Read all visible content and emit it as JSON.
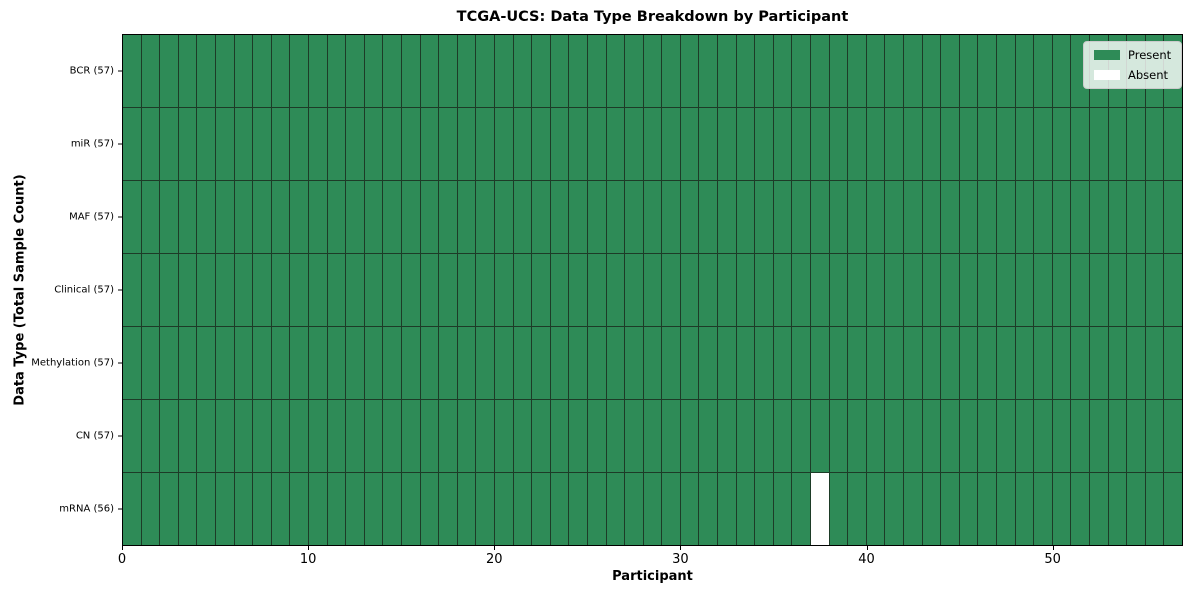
{
  "chart_data": {
    "type": "heatmap",
    "title": "TCGA-UCS: Data Type Breakdown by Participant",
    "xlabel": "Participant",
    "ylabel": "Data Type (Total Sample Count)",
    "n_participants": 57,
    "x_range": [
      0,
      57
    ],
    "x_ticks": [
      0,
      10,
      20,
      30,
      40,
      50
    ],
    "rows": [
      {
        "label": "BCR (57)",
        "data_type": "BCR",
        "total": 57,
        "absent_participants": []
      },
      {
        "label": "miR (57)",
        "data_type": "miR",
        "total": 57,
        "absent_participants": []
      },
      {
        "label": "MAF (57)",
        "data_type": "MAF",
        "total": 57,
        "absent_participants": []
      },
      {
        "label": "Clinical (57)",
        "data_type": "Clinical",
        "total": 57,
        "absent_participants": []
      },
      {
        "label": "Methylation (57)",
        "data_type": "Methylation",
        "total": 57,
        "absent_participants": []
      },
      {
        "label": "CN (57)",
        "data_type": "CN",
        "total": 57,
        "absent_participants": []
      },
      {
        "label": "mRNA (56)",
        "data_type": "mRNA",
        "total": 56,
        "absent_participants": [
          37
        ]
      }
    ],
    "legend": {
      "position": "upper right",
      "entries": [
        {
          "label": "Present",
          "color": "#2e8b57"
        },
        {
          "label": "Absent",
          "color": "#ffffff"
        }
      ]
    },
    "colors": {
      "present": "#2e8b57",
      "absent": "#ffffff",
      "grid_line": "#1d3b27",
      "axis": "#000000",
      "background": "#ffffff"
    },
    "grid": true
  }
}
